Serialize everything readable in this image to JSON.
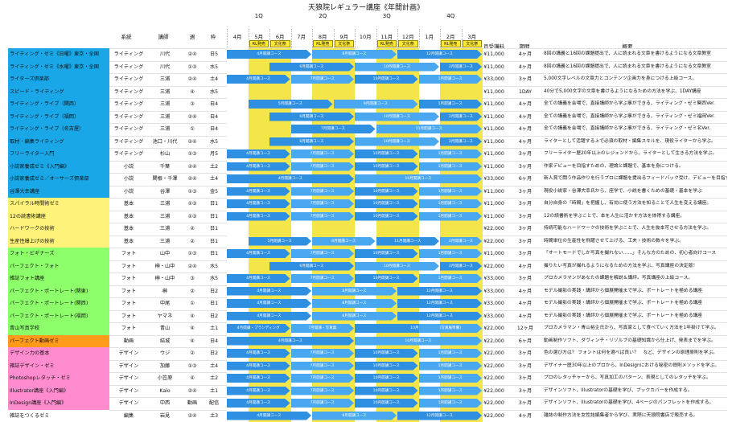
{
  "title": "天狼院レギュラー講座《年間計画》",
  "headers": {
    "system": "系統",
    "teacher": "講師",
    "week": "週",
    "slot": "枠",
    "monthly_fee": "月受講料",
    "period": "期間",
    "summary": "概要"
  },
  "quarters": [
    "1Q",
    "2Q",
    "3Q",
    "4Q"
  ],
  "months": [
    "4月",
    "5月",
    "6月",
    "7月",
    "8月",
    "9月",
    "10月",
    "11月",
    "12月",
    "1月",
    "2月",
    "3月"
  ],
  "rl_labels": [
    "RL発売",
    "文化祭",
    "RL発売",
    "文化祭",
    "RL発売",
    "文化祭",
    "RL発売",
    "文化祭"
  ],
  "colors": {
    "blue": "#1aa7e8",
    "yellow": "#fff27a",
    "green": "#8dff6b",
    "orange": "#ff9a1a",
    "pink": "#ff8ccf",
    "bar": "#2f8fe0"
  },
  "rows": [
    {
      "name": "ライティング・ゼミ《日曜》東京・全国",
      "system": "ライティング",
      "teacher": "川代",
      "week": "②④",
      "slot": "日5",
      "fee": "¥11,000",
      "period": "4ヶ月",
      "desc": "8回の講義と16回の課題提出で、人に読まれる文章を書けるようになる文章教室",
      "group": "blue",
      "bars": [
        "4月開講コース",
        "8月開講コース",
        "12月開講コース"
      ]
    },
    {
      "name": "ライティング・ゼミ《水曜》東京・全国",
      "system": "ライティング",
      "teacher": "川代",
      "week": "①③",
      "slot": "水5",
      "fee": "¥11,000",
      "period": "4ヶ月",
      "desc": "8回の講義と16回の課題提出で、人に読まれる文章を書けるようになる文章教室",
      "group": "blue",
      "bars": [
        "6月開講コース",
        "10月開講コース",
        "2月開講コース"
      ]
    },
    {
      "name": "ライターズ倶楽部",
      "system": "ライティング",
      "teacher": "三浦",
      "week": "②④",
      "slot": "土4",
      "fee": "¥33,000",
      "period": "3ヶ月",
      "desc": "5,000文字レベルの文章力とコンテンツ企画力を身につける上級コース。",
      "group": "blue",
      "bars": [
        "4月開講コース",
        "7月開講コース",
        "10月開講コース",
        "1月開講コース"
      ]
    },
    {
      "name": "スピード・ライティング",
      "system": "ライティング",
      "teacher": "三浦",
      "week": "④",
      "slot": "水5",
      "fee": "¥11,000",
      "period": "1DAY",
      "desc": "40分で5,000文字の文章を書けるようになるための方法を学ぶ、1DAY講座",
      "group": "blue",
      "bars": []
    },
    {
      "name": "ライティング・ライブ（関西）",
      "system": "ライティング",
      "teacher": "三浦",
      "week": "③",
      "slot": "日4",
      "fee": "¥11,000",
      "period": "4ヶ月",
      "desc": "全ての講義を会場で、直接講師から学ぶ事ができる、ライティング・ゼミ関西Ver.",
      "group": "blue",
      "bars": [
        "5月開講コース",
        "9月開講コース",
        "1月開講コース"
      ]
    },
    {
      "name": "ライティング・ライブ（福岡）",
      "system": "ライティング",
      "teacher": "三浦",
      "week": "②④",
      "slot": "日4",
      "fee": "¥11,000",
      "period": "4ヶ月",
      "desc": "全ての講義を会場で、直接講師から学ぶ事ができる、ライティング・ゼミ福岡Ver.",
      "group": "blue",
      "bars": [
        "6月開講コース",
        "10月開講コース",
        "2月開講コース"
      ]
    },
    {
      "name": "ライティング・ライブ（名古屋）",
      "system": "ライティング",
      "teacher": "三浦",
      "week": "①",
      "slot": "日4",
      "fee": "¥11,000",
      "period": "4ヶ月",
      "desc": "全ての講義を会場で、直接講師から学ぶ事ができる、ライティング・ゼミ名Ver.",
      "group": "blue",
      "bars": [
        "7月開講コース",
        "11月開講コース"
      ]
    },
    {
      "name": "取材・編集ライティング",
      "system": "ライティング",
      "teacher": "池口・川代",
      "week": "②④",
      "slot": "水5",
      "fee": "¥11,000",
      "period": "4ヶ月",
      "desc": "ライターとして活躍する上で必須の取材・編集スキルを、現役ライターから学ぶ。",
      "group": "blue",
      "bars": [
        "6月開講コース",
        "10月開講コース",
        "2月開講コース"
      ]
    },
    {
      "name": "フリーライター入門",
      "system": "ライティング",
      "teacher": "杉山",
      "week": "①③",
      "slot": "月5",
      "fee": "¥11,000",
      "period": "3ヶ月",
      "desc": "フリーライター歴20年以上のレジェンドから、ライターとして生きる方法を学ぶ。",
      "group": "blue",
      "bars": [
        "4月開講コース",
        "7月開講コース",
        "10月開講コース",
        "1月開講コース"
      ]
    },
    {
      "name": "小説家養成ゼミ《入門編》",
      "system": "小説",
      "teacher": "千葉",
      "week": "②④",
      "slot": "土2",
      "fee": "¥11,000",
      "period": "3ヶ月",
      "desc": "作家デビューを目指すための、理論と課題で、基本を身につける。",
      "group": "blue",
      "bars": [
        "4月開講コース",
        "7月開講コース",
        "10月開講コース",
        "1月開講コース"
      ]
    },
    {
      "name": "小説家養成ゼミ／オーサーズ倶楽部",
      "system": "小説",
      "teacher": "関根・千澤",
      "week": "②④",
      "slot": "土4",
      "fee": "¥33,000",
      "period": "6ヶ月",
      "desc": "新人賞で闘う作品作りを行うプロに課題を提出るフィードバック受け、デビューを目指す。",
      "group": "blue",
      "bars": [
        "4月開講コース",
        "10月開講コース"
      ]
    },
    {
      "name": "谷澤大幸講座",
      "system": "小説",
      "teacher": "谷澤",
      "week": "①③",
      "slot": "金5",
      "fee": "¥11,000",
      "period": "3ヶ月",
      "desc": "現役小説家・谷澤大幸氏から、座学で、小説を書くための基礎・基本を学ぶ",
      "group": "blue",
      "bars": [
        "4月開講コース",
        "7月開講コース",
        "10月開講コース",
        "1月開講コース"
      ]
    },
    {
      "name": "スパイラル時間術ゼミ",
      "system": "基本",
      "teacher": "三浦",
      "week": "①③",
      "slot": "日1",
      "fee": "¥11,000",
      "period": "3ヶ月",
      "desc": "自分自身の「時間」を把握し、有効に使う方法を知ることで人生を変える講座。",
      "group": "yellow",
      "bars": [
        "4月開講コース",
        "7月開講コース",
        "10月開講コース",
        "1月開講コース"
      ]
    },
    {
      "name": "12の読書術講座",
      "system": "基本",
      "teacher": "三浦",
      "week": "①③",
      "slot": "日1",
      "fee": "¥11,000",
      "period": "3ヶ月",
      "desc": "12の読書術を学ぶことで、本を人生に活かす方法を体得する講座。",
      "group": "yellow",
      "bars": [
        "4月開講コース",
        "7月開講コース",
        "10月開講コース",
        "1月開講コース"
      ]
    },
    {
      "name": "ハードワークの技術",
      "system": "基本",
      "teacher": "三浦",
      "week": "②",
      "slot": "日1",
      "fee": "¥22,000",
      "period": "3ヶ月",
      "desc": "持続可能なハードワークの技術を学ぶことで、人生を抜本可させる方法を学ぶ。",
      "group": "yellow",
      "bars": []
    },
    {
      "name": "生産性爆上げの技術",
      "system": "基本",
      "teacher": "三浦",
      "week": "②",
      "slot": "日1",
      "fee": "¥22,000",
      "period": "3ヶ月",
      "desc": "時間単位の生産性を飛躍させて上げる、工夫・技術の数々を学ぶ。",
      "group": "yellow",
      "bars": [
        "5月開講コース",
        "8月開講コース",
        "11月開講コース",
        "2月開講コース"
      ]
    },
    {
      "name": "フォト・ビギナーズ",
      "system": "フォト",
      "teacher": "山中",
      "week": "①③",
      "slot": "日1",
      "fee": "¥11,000",
      "period": "3ヶ月",
      "desc": "「オートモードでしか写真を撮れない……」そんな方のための、初心者向けコース",
      "group": "green",
      "bars": [
        "4月開講コース",
        "7月開講コース",
        "10月開講コース",
        "1月開講コース"
      ]
    },
    {
      "name": "パーフェクト・フォト",
      "system": "フォト",
      "teacher": "榊・山中",
      "week": "②④",
      "slot": "水5",
      "fee": "¥22,000",
      "period": "4ヶ月",
      "desc": "撮りたい写真が撮れるようになるための方法を学ぶ、写真講座の決定版！",
      "group": "green",
      "bars": [
        "6月開講コース",
        "10月開講コース",
        "2月開講コース"
      ]
    },
    {
      "name": "雑誌フォト講座",
      "system": "フォト",
      "teacher": "榊・山中",
      "week": "③",
      "slot": "水5",
      "fee": "¥33,000",
      "period": "3ヶ月",
      "desc": "プロカメラマンがあなたの課題を解説＆講評。写真講座の上級コース。",
      "group": "green",
      "bars": [
        "4月開講コース",
        "7月開講コース",
        "10月開講コース",
        "1月開講コース"
      ]
    },
    {
      "name": "パーフェクト・ポートレート(関東)",
      "system": "フォト",
      "teacher": "榊",
      "week": "②",
      "slot": "日2",
      "fee": "¥33,000",
      "period": "4ヶ月",
      "desc": "モデル撮影の実践・講評から個展開催まで学ぶ、ポートレートを極める講座",
      "group": "green",
      "bars": [
        "4月開講コース",
        "8月開講コース",
        "12月開講コース"
      ]
    },
    {
      "name": "パーフェクト・ポートレート(関西)",
      "system": "フォト",
      "teacher": "中尾",
      "week": "①",
      "slot": "日1",
      "fee": "¥33,000",
      "period": "4ヶ月",
      "desc": "モデル撮影の実践・講評から個展開催まで学ぶ、ポートレートを極める講座",
      "group": "green",
      "bars": [
        "4月開講コース",
        "8月開講コース",
        "12月開講コース"
      ]
    },
    {
      "name": "パーフェクト・ポートレート(福岡)",
      "system": "フォト",
      "teacher": "ヤマネ",
      "week": "④",
      "slot": "日2",
      "fee": "¥33,000",
      "period": "4ヶ月",
      "desc": "モデル撮影の実践・講評から個展開催まで学ぶ、ポートレートを極める講座",
      "group": "green",
      "bars": [
        "4月開講コース",
        "8月開講コース",
        "12月開講コース"
      ]
    },
    {
      "name": "青山写真学校",
      "system": "フォト",
      "teacher": "青山",
      "week": "④",
      "slot": "土1",
      "fee": "¥22,000",
      "period": "12ヶ月",
      "desc": "プロカメラマン・青山裕企氏から、写真家として食べていく方法を1年掛けて学ぶ。",
      "group": "green",
      "bars": [
        "4月開講・プランディング",
        "7月開講・写真集",
        "10月開講",
        "(写真展準備)"
      ]
    },
    {
      "name": "パーフェクト動画ゼミ",
      "system": "動画",
      "teacher": "結城",
      "week": "④",
      "slot": "日4",
      "fee": "¥22,000",
      "period": "6ヶ月",
      "desc": "動画制作ソフト、ダヴィンチ・リゾルブの基礎知識から仕上げ、発表までを学ぶ。",
      "group": "orange",
      "bars": [
        "4月開講コース",
        "10月開講コース"
      ]
    },
    {
      "name": "デザイン力の基本",
      "system": "デザイン",
      "teacher": "ウジ",
      "week": "②",
      "slot": "日2",
      "fee": "¥22,000",
      "period": "3ヶ月",
      "desc": "色の選び方は？ フォントは何を選べば良い？　など、デザインの原理原則を学ぶ。",
      "group": "pink",
      "bars": [
        "4月開講コース",
        "7月開講コース",
        "10月開講コース",
        "1月開講コース"
      ]
    },
    {
      "name": "雑誌デザイン・ゼミ",
      "system": "デザイン",
      "teacher": "加藤",
      "week": "①③",
      "slot": "土4",
      "fee": "¥22,000",
      "period": "3ヶ月",
      "desc": "デザイナー歴30年以上のプロから、InDesignにおける秘密の鉄則メソッドを学ぶ。",
      "group": "pink",
      "bars": [
        "4月開講コース",
        "7月開講コース",
        "10月開講コース",
        "1月開講コース"
      ]
    },
    {
      "name": "Photoshopレタッチ・ゼミ",
      "system": "デザイン",
      "teacher": "小笠原",
      "week": "④",
      "slot": "土2",
      "fee": "¥22,000",
      "period": "3ヶ月",
      "desc": "プロのレタッチャーから、写真加工のパターン、表現としてのレタッチを学ぶ。",
      "group": "pink",
      "bars": [
        "4月開講コース",
        "7月開講コース",
        "10月開講コース",
        "1月開講コース"
      ]
    },
    {
      "name": "Illustrator講座《入門編》",
      "system": "デザイン",
      "teacher": "Kalo",
      "week": "②④",
      "slot": "土1",
      "fee": "¥22,000",
      "period": "3ヶ月",
      "desc": "デザインソフト、Illustratorの基礎を学び、ブックカバーを作成する。",
      "group": "pink",
      "bars": [
        "4月開講コース",
        "7月開講コース",
        "10月開講コース",
        "1月開講コース"
      ]
    },
    {
      "name": "InDesign講座《入門編》",
      "system": "デザイン",
      "teacher": "中西",
      "week": "動画",
      "slot": "配信",
      "fee": "¥22,000",
      "period": "3ヶ月",
      "desc": "デザインソフト、Illustratorの基礎を学び、4ページのパンフレットを作成する。",
      "group": "pink",
      "bars": [
        "4月開講コース",
        "7月開講コース",
        "10月開講コース",
        "1月開講コース"
      ]
    },
    {
      "name": "雑誌をつくるゼミ",
      "system": "編集",
      "teacher": "岩見",
      "week": "②④",
      "slot": "土3",
      "fee": "¥22,000",
      "period": "4ヶ月",
      "desc": "雑誌の制作方法を女性誌編集者から学び、実際に天狼院書店で販売する。",
      "group": "white",
      "bars": [
        "4月開講コース",
        "8月開講コース",
        "12月開講コース"
      ]
    }
  ]
}
